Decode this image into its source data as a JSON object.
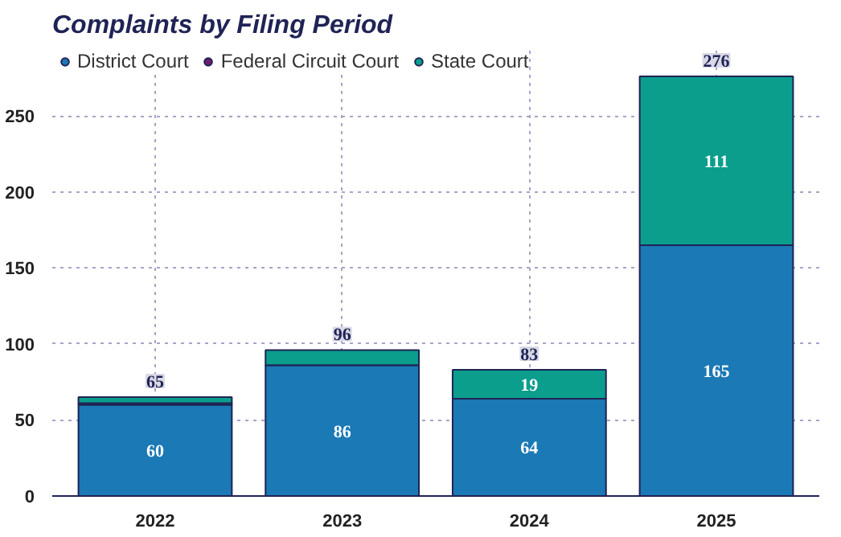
{
  "chart_data": {
    "type": "bar",
    "title": "Complaints by Filing Period",
    "stacked": true,
    "categories": [
      "2022",
      "2023",
      "2024",
      "2025"
    ],
    "series": [
      {
        "name": "District Court",
        "color": "#1b79b5",
        "values": [
          60,
          86,
          64,
          165
        ],
        "value_labels": [
          "60",
          "86",
          "64",
          "165"
        ]
      },
      {
        "name": "Federal Circuit Court",
        "color": "#6e1a6a",
        "values": [
          1,
          0,
          0,
          0
        ]
      },
      {
        "name": "State Court",
        "color": "#0b9e8d",
        "values": [
          4,
          10,
          19,
          111
        ],
        "value_labels": [
          null,
          null,
          "19",
          "111"
        ]
      }
    ],
    "totals": [
      "65",
      "96",
      "83",
      "276"
    ],
    "ylim": [
      0,
      295
    ],
    "yticks": [
      0,
      50,
      100,
      150,
      200,
      250
    ],
    "grid": true,
    "legend": "top left"
  }
}
